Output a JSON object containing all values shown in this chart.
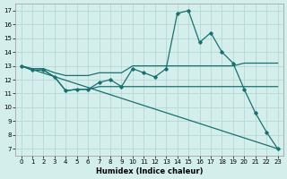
{
  "xlabel": "Humidex (Indice chaleur)",
  "xlim": [
    -0.5,
    23.5
  ],
  "ylim": [
    6.5,
    17.5
  ],
  "xticks": [
    0,
    1,
    2,
    3,
    4,
    5,
    6,
    7,
    8,
    9,
    10,
    11,
    12,
    13,
    14,
    15,
    16,
    17,
    18,
    19,
    20,
    21,
    22,
    23
  ],
  "yticks": [
    7,
    8,
    9,
    10,
    11,
    12,
    13,
    14,
    15,
    16,
    17
  ],
  "bg_color": "#d4eeec",
  "grid_color": "#aed4d2",
  "line_color": "#1a7070",
  "line1_x": [
    0,
    1,
    2,
    3,
    4,
    5,
    6,
    7,
    8,
    9,
    10,
    11,
    12,
    13,
    14,
    15,
    16,
    17,
    18,
    19,
    20,
    21,
    22,
    23
  ],
  "line1_y": [
    13,
    12.7,
    12.7,
    12.2,
    11.2,
    11.3,
    11.3,
    11.8,
    12.0,
    11.5,
    12.8,
    12.5,
    12.2,
    12.8,
    16.8,
    17.0,
    14.7,
    15.4,
    14.0,
    13.2,
    11.3,
    9.6,
    8.2,
    7.0
  ],
  "line2_x": [
    0,
    1,
    2,
    3,
    4,
    5,
    6,
    7,
    8,
    9,
    10,
    11,
    12,
    13,
    14,
    15,
    16,
    17,
    18,
    19,
    20,
    21,
    22,
    23
  ],
  "line2_y": [
    13,
    12.8,
    12.8,
    12.5,
    12.3,
    12.3,
    12.3,
    12.5,
    12.5,
    12.5,
    13.0,
    13.0,
    13.0,
    13.0,
    13.0,
    13.0,
    13.0,
    13.0,
    13.0,
    13.0,
    13.2,
    13.2,
    13.2,
    13.2
  ],
  "line3_x": [
    0,
    1,
    2,
    3,
    4,
    5,
    6,
    7,
    8,
    9,
    10,
    11,
    12,
    13,
    14,
    15,
    16,
    17,
    18,
    19,
    20,
    21,
    22,
    23
  ],
  "line3_y": [
    13,
    12.7,
    12.7,
    12.2,
    11.2,
    11.3,
    11.3,
    11.5,
    11.5,
    11.5,
    11.5,
    11.5,
    11.5,
    11.5,
    11.5,
    11.5,
    11.5,
    11.5,
    11.5,
    11.5,
    11.5,
    11.5,
    11.5,
    11.5
  ],
  "line4_x": [
    0,
    23
  ],
  "line4_y": [
    13.0,
    7.0
  ]
}
